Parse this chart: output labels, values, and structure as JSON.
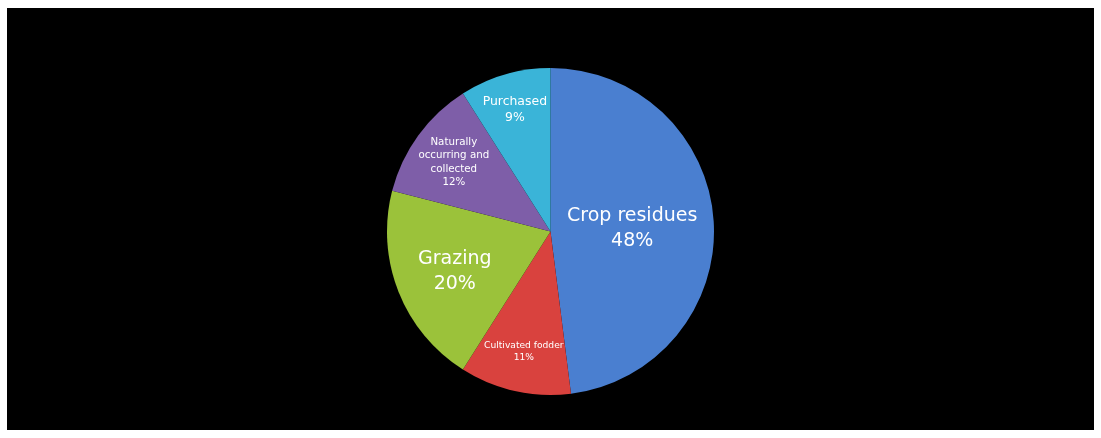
{
  "chart_data": {
    "type": "pie",
    "categories": [
      "Crop residues",
      "Cultivated fodder",
      "Grazing",
      "Naturally occurring and collected",
      "Purchased"
    ],
    "values": [
      48,
      11,
      20,
      12,
      9
    ],
    "value_labels": [
      "48%",
      "11%",
      "20%",
      "12%",
      "9%"
    ],
    "colors": [
      "#4a7fd0",
      "#d9423e",
      "#9bc23a",
      "#7e5ea8",
      "#3ab4d8"
    ]
  }
}
